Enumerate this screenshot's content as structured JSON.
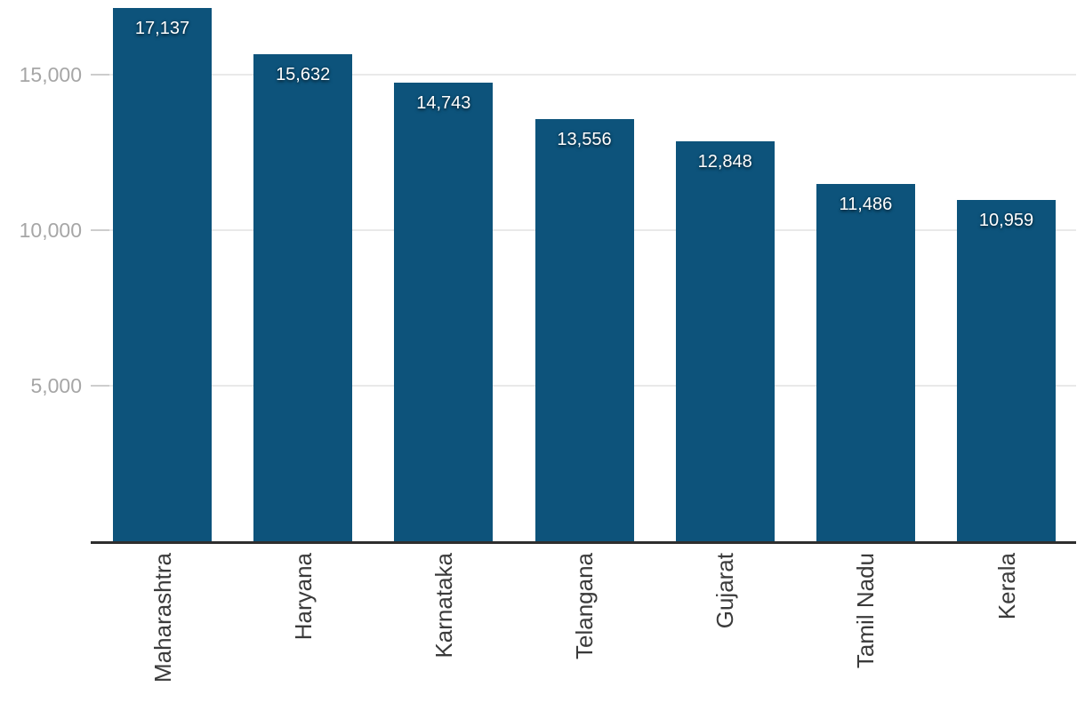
{
  "chart_data": {
    "type": "bar",
    "categories": [
      "Maharashtra",
      "Haryana",
      "Karnataka",
      "Telangana",
      "Gujarat",
      "Tamil Nadu",
      "Kerala"
    ],
    "values": [
      17137,
      15632,
      14743,
      13556,
      12848,
      11486,
      10959
    ],
    "value_labels": [
      "17,137",
      "15,632",
      "14,743",
      "13,556",
      "12,848",
      "11,486",
      "10,959"
    ],
    "title": "",
    "xlabel": "",
    "ylabel": "",
    "ylim": [
      0,
      17400
    ],
    "yticks": [
      5000,
      10000,
      15000
    ],
    "ytick_labels": [
      "5,000",
      "10,000",
      "15,000"
    ],
    "grid": "horizontal",
    "legend": "none",
    "bar_color": "#0d537b",
    "gridline_color": "#e9e9e9",
    "tick_color": "#cdcdcd",
    "axis_line_color": "#2e2e2e",
    "ytick_text_color": "#a6a6a6",
    "xlabel_text_color": "#3a3a3a",
    "value_text_color": "#ffffff"
  }
}
